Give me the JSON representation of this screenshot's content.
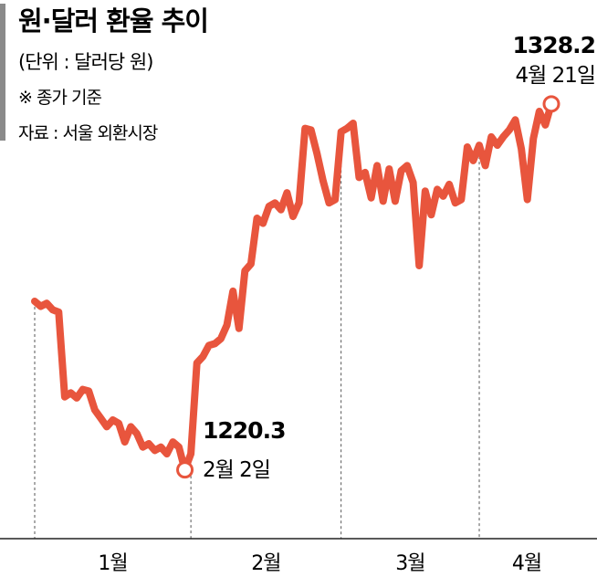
{
  "chart_data": {
    "type": "line",
    "title": "원·달러 환율 추이",
    "unit": "(단위 : 달러당 원)",
    "notes": [
      "※ 종가 기준",
      "자료 : 서울 외환시장"
    ],
    "x_tick_labels": [
      "1월",
      "2월",
      "3월",
      "4월"
    ],
    "ylim": [
      1200,
      1340
    ],
    "grid": false,
    "line_color": "#e8553d",
    "values": [
      1270.0,
      1268.5,
      1269.4,
      1267.5,
      1266.8,
      1241.8,
      1243.0,
      1241.5,
      1244.0,
      1243.5,
      1238.0,
      1235.5,
      1233.0,
      1235.0,
      1234.0,
      1228.5,
      1233.0,
      1231.0,
      1227.0,
      1228.0,
      1226.0,
      1227.0,
      1225.0,
      1228.5,
      1227.0,
      1220.3,
      1225.0,
      1251.8,
      1253.7,
      1257.0,
      1257.5,
      1259.0,
      1263.0,
      1273.0,
      1262.0,
      1279.0,
      1281.0,
      1294.5,
      1293.0,
      1298.0,
      1299.0,
      1297.0,
      1302.0,
      1295.0,
      1299.0,
      1321.0,
      1320.5,
      1313.5,
      1305.5,
      1299.0,
      1300.0,
      1320.0,
      1321.0,
      1322.5,
      1306.5,
      1308.0,
      1300.5,
      1310.0,
      1299.5,
      1309.0,
      1299.5,
      1308.5,
      1310.0,
      1305.0,
      1280.5,
      1302.5,
      1295.5,
      1303.0,
      1301.0,
      1304.5,
      1299.0,
      1300.0,
      1315.5,
      1311.5,
      1316.0,
      1310.0,
      1318.5,
      1316.0,
      1318.5,
      1320.5,
      1323.5,
      1315.0,
      1300.0,
      1318.0,
      1326.0,
      1322.0,
      1328.2
    ],
    "month_start_indices": [
      0,
      26,
      51,
      74
    ],
    "annotations": [
      {
        "index": 25,
        "value": "1220.3",
        "date": "2월 2일"
      },
      {
        "index": 86,
        "value": "1328.2",
        "date": "4월 21일"
      }
    ]
  }
}
